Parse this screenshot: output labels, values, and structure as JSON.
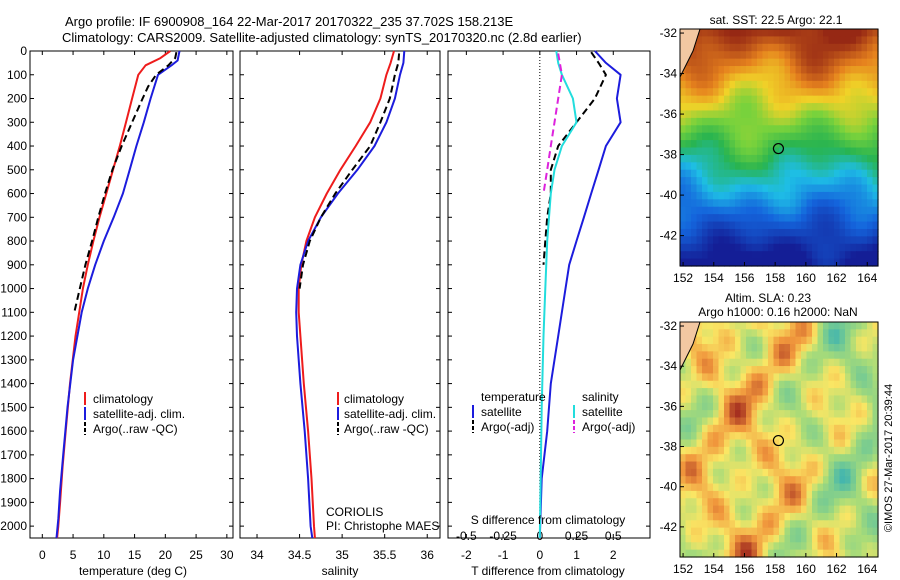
{
  "header": {
    "line1": "Argo profile: IF 6900908_164 22-Mar-2017 20170322_235 37.702S 158.213E",
    "line2": "Climatology: CARS2009. Satellite-adjusted climatology: synTS_20170320.nc (2.8d earlier)"
  },
  "colors": {
    "climatology": "#ee1c1c",
    "satellite": "#1c1cdd",
    "argo": "#000000",
    "sal_satellite": "#22dddd",
    "sal_argo": "#dd22dd"
  },
  "chart_data": [
    {
      "type": "line",
      "panel": "temperature",
      "xlabel": "temperature (deg C)",
      "ylabel": "",
      "xlim": [
        -2,
        31
      ],
      "ylim": [
        2050,
        0
      ],
      "xticks": [
        0,
        5,
        10,
        15,
        20,
        25,
        30
      ],
      "yticks": [
        0,
        100,
        200,
        300,
        400,
        500,
        600,
        700,
        800,
        900,
        1000,
        1100,
        1200,
        1300,
        1400,
        1500,
        1600,
        1700,
        1800,
        1900,
        2000
      ],
      "legend": [
        "climatology",
        "satellite-adj. clim.",
        "Argo(..raw -QC)"
      ],
      "legend_position": "lower-right",
      "series": [
        {
          "name": "climatology",
          "color": "#ee1c1c",
          "style": "solid",
          "x": [
            20.8,
            19.2,
            16.8,
            15.6,
            14.6,
            13.6,
            12.6,
            11.5,
            10.4,
            9.3,
            8.3,
            7.4,
            6.6,
            5.4,
            4.5,
            3.8,
            3.3,
            2.9,
            2.6,
            2.4
          ],
          "y": [
            0,
            30,
            60,
            100,
            200,
            300,
            400,
            500,
            600,
            700,
            800,
            900,
            1000,
            1200,
            1400,
            1600,
            1750,
            1900,
            2000,
            2050
          ]
        },
        {
          "name": "satellite-adj. clim.",
          "color": "#1c1cdd",
          "style": "solid",
          "x": [
            22.3,
            22.0,
            21.0,
            18.8,
            17.6,
            16.5,
            15.3,
            14.2,
            13.1,
            11.6,
            10.0,
            8.6,
            7.4,
            6.4,
            5.0,
            4.1,
            3.4,
            2.9,
            2.6,
            2.3
          ],
          "y": [
            0,
            40,
            60,
            100,
            200,
            300,
            400,
            500,
            600,
            700,
            800,
            900,
            1000,
            1100,
            1300,
            1500,
            1700,
            1850,
            1970,
            2050
          ]
        },
        {
          "name": "Argo(..raw -QC)",
          "color": "#000000",
          "style": "dashed",
          "x": [
            21.8,
            21.6,
            20.5,
            18.5,
            17.2,
            16.3,
            14.6,
            12.9,
            11.4,
            10.2,
            9.1,
            8.1,
            7.0,
            6.1,
            5.2
          ],
          "y": [
            5,
            30,
            60,
            100,
            150,
            200,
            300,
            400,
            500,
            600,
            700,
            800,
            900,
            1000,
            1100
          ]
        }
      ]
    },
    {
      "type": "line",
      "panel": "salinity",
      "xlabel": "salinity",
      "ylabel": "",
      "xlim": [
        33.8,
        36.15
      ],
      "ylim": [
        2050,
        0
      ],
      "xticks": [
        34,
        34.5,
        35,
        35.5,
        36
      ],
      "legend": [
        "climatology",
        "satellite-adj. clim.",
        "Argo(..raw -QC)"
      ],
      "legend_position": "lower-right",
      "annotation_lines": [
        "CORIOLIS",
        "PI: Christophe MAES"
      ],
      "series": [
        {
          "name": "climatology",
          "color": "#ee1c1c",
          "style": "solid",
          "x": [
            35.61,
            35.57,
            35.52,
            35.45,
            35.33,
            35.16,
            34.98,
            34.82,
            34.68,
            34.58,
            34.52,
            34.49,
            34.49,
            34.51,
            34.55,
            34.6,
            34.64,
            34.67,
            34.68
          ],
          "y": [
            0,
            50,
            100,
            200,
            300,
            400,
            500,
            600,
            700,
            800,
            900,
            1000,
            1100,
            1200,
            1400,
            1600,
            1800,
            2000,
            2050
          ]
        },
        {
          "name": "satellite-adj. clim.",
          "color": "#1c1cdd",
          "style": "solid",
          "x": [
            35.73,
            35.72,
            35.68,
            35.62,
            35.52,
            35.38,
            35.18,
            34.95,
            34.75,
            34.6,
            34.51,
            34.47,
            34.46,
            34.47,
            34.51,
            34.56,
            34.6,
            34.63,
            34.65
          ],
          "y": [
            0,
            50,
            100,
            200,
            300,
            400,
            500,
            600,
            700,
            800,
            900,
            1000,
            1100,
            1200,
            1400,
            1600,
            1800,
            2000,
            2050
          ]
        },
        {
          "name": "Argo(..raw -QC)",
          "color": "#000000",
          "style": "dashed",
          "x": [
            35.67,
            35.66,
            35.62,
            35.56,
            35.45,
            35.33,
            35.12,
            34.92,
            34.75,
            34.62,
            34.54,
            34.5
          ],
          "y": [
            10,
            50,
            100,
            200,
            300,
            400,
            500,
            600,
            700,
            800,
            900,
            1000
          ]
        }
      ]
    },
    {
      "type": "line",
      "panel": "difference",
      "xlabel": "T difference from climatology",
      "xlabel_top": "S difference from climatology",
      "xlim": [
        -2.5,
        3.0
      ],
      "ylim": [
        2050,
        0
      ],
      "xticks": [
        -2,
        -1,
        0,
        1,
        2
      ],
      "xticks_s": [
        -0.5,
        -0.25,
        0,
        0.25,
        0.5
      ],
      "legend_temperature_title": "temperature",
      "legend_salinity_title": "salinity",
      "legend": [
        "satellite",
        "Argo(-adj)",
        "satellite",
        "Argo(-adj)"
      ],
      "series": [
        {
          "name": "satellite",
          "color": "#1c1cdd",
          "style": "solid",
          "x": [
            1.5,
            1.8,
            2.2,
            2.1,
            2.2,
            1.8,
            1.6,
            1.4,
            1.2,
            1.0,
            0.8,
            0.7,
            0.5,
            0.3,
            0.2,
            0.05,
            0.0
          ],
          "y": [
            0,
            50,
            100,
            200,
            300,
            400,
            500,
            600,
            700,
            800,
            900,
            1000,
            1200,
            1400,
            1600,
            1800,
            2050
          ]
        },
        {
          "name": "Argo(-adj)",
          "color": "#000000",
          "style": "dashed",
          "x": [
            1.4,
            1.6,
            1.8,
            1.5,
            1.0,
            0.5,
            0.3,
            0.3,
            0.2,
            0.15,
            0.1
          ],
          "y": [
            5,
            50,
            100,
            200,
            300,
            400,
            500,
            600,
            700,
            800,
            900
          ]
        },
        {
          "name": "satellite",
          "color": "#22dddd",
          "style": "solid",
          "x": [
            0.45,
            0.5,
            0.6,
            0.9,
            1.0,
            0.6,
            0.4,
            0.3,
            0.25,
            0.2,
            0.15,
            0.1,
            0.05,
            0.0
          ],
          "y": [
            0,
            50,
            100,
            200,
            300,
            400,
            500,
            600,
            700,
            800,
            1000,
            1200,
            1500,
            2050
          ]
        },
        {
          "name": "Argo(-adj)",
          "color": "#dd22dd",
          "style": "dashed",
          "x": [
            0.5,
            0.6,
            0.5,
            0.4,
            0.3,
            0.2,
            0.1
          ],
          "y": [
            10,
            100,
            200,
            300,
            400,
            500,
            600
          ]
        }
      ]
    },
    {
      "type": "heatmap",
      "panel": "sst_map",
      "title": "sat. SST: 22.5 Argo: 22.1",
      "xticks": [
        152,
        154,
        156,
        158,
        160,
        162,
        164
      ],
      "yticks": [
        -32,
        -34,
        -36,
        -38,
        -40,
        -42
      ],
      "xlim": [
        151.8,
        164.7
      ],
      "ylim": [
        -43.5,
        -31.8
      ],
      "marker": {
        "lon": 158.213,
        "lat": -37.702
      }
    },
    {
      "type": "heatmap",
      "panel": "sla_map",
      "title": "Altim. SLA: 0.23",
      "subtitle": "Argo h1000: 0.16 h2000: NaN",
      "xticks": [
        152,
        154,
        156,
        158,
        160,
        162,
        164
      ],
      "yticks": [
        -32,
        -34,
        -36,
        -38,
        -40,
        -42
      ],
      "xlim": [
        151.8,
        164.7
      ],
      "ylim": [
        -43.5,
        -31.8
      ],
      "marker": {
        "lon": 158.213,
        "lat": -37.702
      }
    }
  ],
  "legends": {
    "temp": [
      "climatology",
      "satellite-adj. clim.",
      "Argo(..raw -QC)"
    ],
    "sal": [
      "climatology",
      "satellite-adj. clim.",
      "Argo(..raw -QC)"
    ],
    "diff_temp_title": "temperature",
    "diff_sal_title": "salinity",
    "diff_entries": [
      "satellite",
      "Argo(-adj)",
      "satellite",
      "Argo(-adj)"
    ]
  },
  "credit": "CORIOLIS",
  "pi": "PI: Christophe MAES",
  "imos_stamp": "©IMOS 27-Mar-2017 20:39:44"
}
